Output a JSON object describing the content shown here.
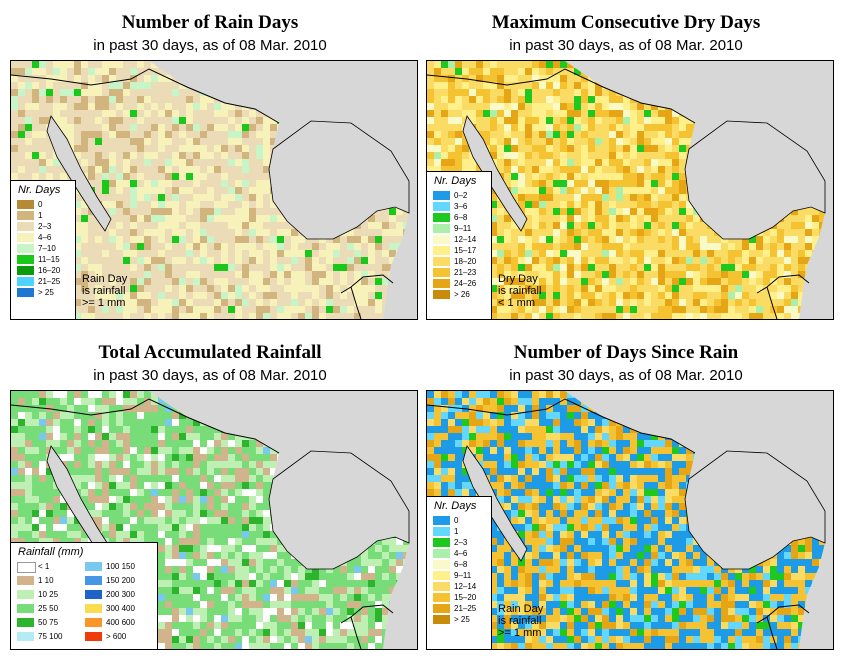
{
  "colors": {
    "ocean": "#d7d7d7",
    "land_default": "#f7f2ba",
    "border": "#000000"
  },
  "panels": [
    {
      "id": "rain-days",
      "title": "Number of Rain Days",
      "subtitle": "in past 30 days, as of  08 Mar. 2010",
      "legend_title": "Nr. Days",
      "legend": [
        {
          "label": "0",
          "color": "#b48a36"
        },
        {
          "label": "1",
          "color": "#d2b47e"
        },
        {
          "label": "2–3",
          "color": "#ebdbb7"
        },
        {
          "label": "4–6",
          "color": "#f7f2ba"
        },
        {
          "label": "7–10",
          "color": "#c8f5c8"
        },
        {
          "label": "11–15",
          "color": "#19c819"
        },
        {
          "label": "16–20",
          "color": "#0a9a0a"
        },
        {
          "label": "21–25",
          "color": "#50d2ff"
        },
        {
          "label": "> 25",
          "color": "#1e78d2"
        }
      ],
      "note": [
        "Rain Day",
        "is rainfall",
        ">= 1 mm"
      ],
      "palette": [
        {
          "color": "#ebdbb7",
          "weight": 0.45
        },
        {
          "color": "#f7f2ba",
          "weight": 0.3
        },
        {
          "color": "#d2b47e",
          "weight": 0.15
        },
        {
          "color": "#c8f5c8",
          "weight": 0.08
        },
        {
          "color": "#19c819",
          "weight": 0.02
        }
      ]
    },
    {
      "id": "dry-days",
      "title": "Maximum Consecutive Dry Days",
      "subtitle": "in past 30 days, as of  08 Mar. 2010",
      "legend_title": "Nr. Days",
      "legend": [
        {
          "label": "0–2",
          "color": "#1e9be6"
        },
        {
          "label": "3–6",
          "color": "#64d7ff"
        },
        {
          "label": "6–8",
          "color": "#1ec81e"
        },
        {
          "label": "9–11",
          "color": "#aaf0aa"
        },
        {
          "label": "12–14",
          "color": "#fafac8"
        },
        {
          "label": "15–17",
          "color": "#fff08c"
        },
        {
          "label": "18–20",
          "color": "#fadc64"
        },
        {
          "label": "21–23",
          "color": "#f5c332"
        },
        {
          "label": "24–26",
          "color": "#e6a514"
        },
        {
          "label": "> 26",
          "color": "#c88c0a"
        }
      ],
      "note": [
        "Dry Day",
        "is rainfall",
        "< 1 mm"
      ],
      "palette": [
        {
          "color": "#fadc64",
          "weight": 0.34
        },
        {
          "color": "#f5c332",
          "weight": 0.22
        },
        {
          "color": "#fff08c",
          "weight": 0.18
        },
        {
          "color": "#e6a514",
          "weight": 0.14
        },
        {
          "color": "#fafac8",
          "weight": 0.06
        },
        {
          "color": "#1ec81e",
          "weight": 0.04
        },
        {
          "color": "#aaf0aa",
          "weight": 0.02
        }
      ]
    },
    {
      "id": "total-rainfall",
      "title": "Total Accumulated Rainfall",
      "subtitle": "in past 30 days, as of  08 Mar. 2010",
      "legend_title": "Rainfall (mm)",
      "legend": [
        {
          "label": "< 1",
          "color": "#ffffff"
        },
        {
          "label": "1   10",
          "color": "#d2b48c"
        },
        {
          "label": "10   25",
          "color": "#bef0b4"
        },
        {
          "label": "25   50",
          "color": "#78dc78"
        },
        {
          "label": "50   75",
          "color": "#2db42d"
        },
        {
          "label": "75   100",
          "color": "#b4ebf5"
        },
        {
          "label": "100   150",
          "color": "#78c8f0"
        },
        {
          "label": "150   200",
          "color": "#4696e6"
        },
        {
          "label": "200   300",
          "color": "#1e64c8"
        },
        {
          "label": "300   400",
          "color": "#fadc50"
        },
        {
          "label": "400   600",
          "color": "#fa9628"
        },
        {
          "label": "> 600",
          "color": "#f03c0a"
        }
      ],
      "note": [],
      "palette": [
        {
          "color": "#78dc78",
          "weight": 0.4
        },
        {
          "color": "#bef0b4",
          "weight": 0.25
        },
        {
          "color": "#d2b48c",
          "weight": 0.18
        },
        {
          "color": "#ffffff",
          "weight": 0.1
        },
        {
          "color": "#2db42d",
          "weight": 0.05
        },
        {
          "color": "#78c8f0",
          "weight": 0.02
        }
      ]
    },
    {
      "id": "days-since-rain",
      "title": "Number of Days Since Rain",
      "subtitle": "in past 30 days, as of  08 Mar. 2010",
      "legend_title": "Nr. Days",
      "legend": [
        {
          "label": "0",
          "color": "#1e9be6"
        },
        {
          "label": "1",
          "color": "#64d7ff"
        },
        {
          "label": "2–3",
          "color": "#1ec81e"
        },
        {
          "label": "4–6",
          "color": "#aaf0aa"
        },
        {
          "label": "6–8",
          "color": "#fafac8"
        },
        {
          "label": "9–11",
          "color": "#fff08c"
        },
        {
          "label": "12–14",
          "color": "#fadc64"
        },
        {
          "label": "15–20",
          "color": "#f5c332"
        },
        {
          "label": "21–25",
          "color": "#e6a514"
        },
        {
          "label": "> 25",
          "color": "#c88c0a"
        }
      ],
      "note": [
        "Rain Day",
        "is rainfall",
        ">= 1 mm"
      ],
      "palette": [
        {
          "color": "#1e9be6",
          "weight": 0.35
        },
        {
          "color": "#64d7ff",
          "weight": 0.15
        },
        {
          "color": "#f5c332",
          "weight": 0.22
        },
        {
          "color": "#e6a514",
          "weight": 0.12
        },
        {
          "color": "#fadc64",
          "weight": 0.1
        },
        {
          "color": "#1ec81e",
          "weight": 0.06
        }
      ]
    }
  ]
}
